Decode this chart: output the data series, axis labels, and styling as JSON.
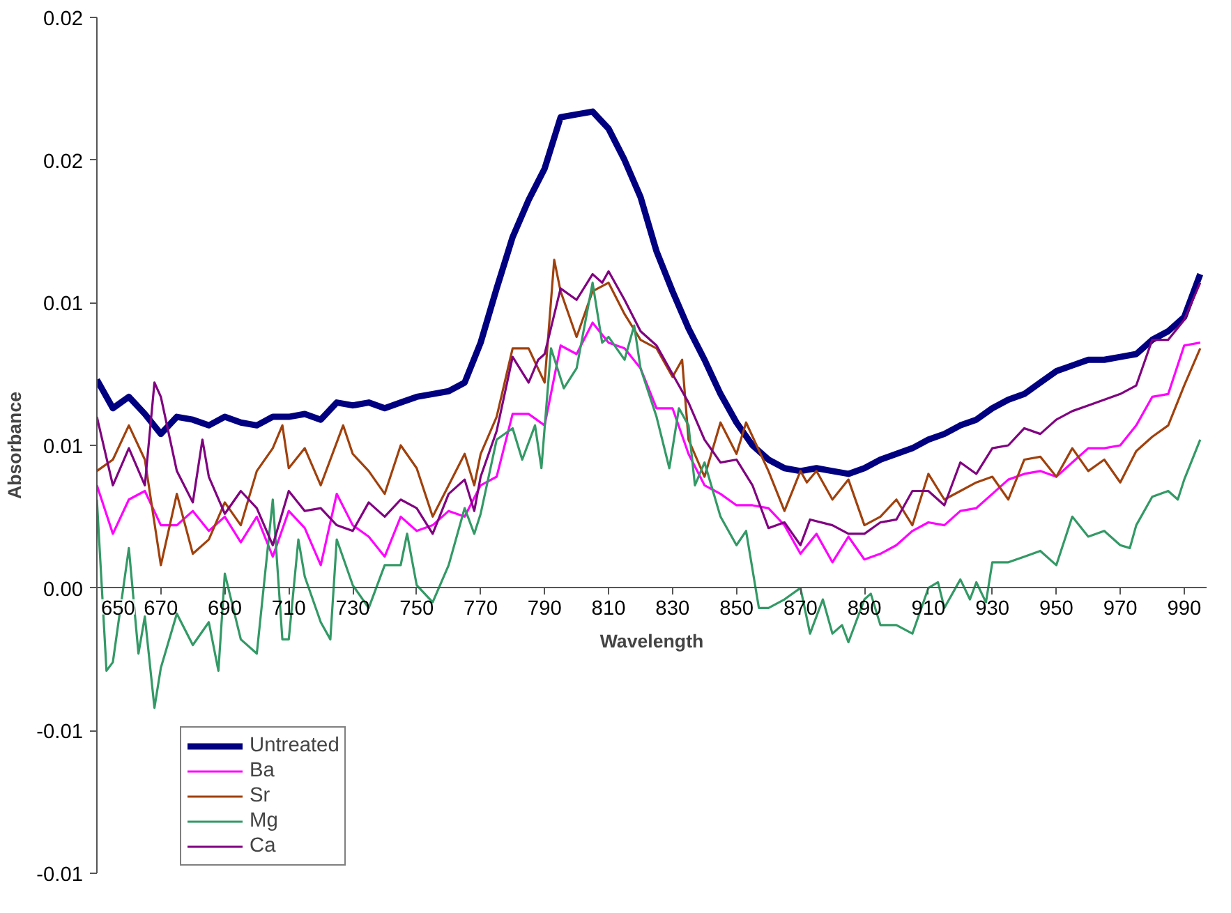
{
  "chart_data": {
    "type": "line",
    "xlabel": "Wavelength",
    "ylabel": "Absorbance",
    "xlim": [
      650,
      997
    ],
    "ylim": [
      -0.01,
      0.02
    ],
    "xticks": [
      650,
      670,
      690,
      710,
      730,
      750,
      770,
      790,
      810,
      830,
      850,
      870,
      890,
      910,
      930,
      950,
      970,
      990
    ],
    "yticks": [
      {
        "value": -0.01,
        "label": "-0.01"
      },
      {
        "value": -0.005,
        "label": "-0.01"
      },
      {
        "value": 0,
        "label": "0.00"
      },
      {
        "value": 0.005,
        "label": "0.01"
      },
      {
        "value": 0.01,
        "label": "0.01"
      },
      {
        "value": 0.015,
        "label": "0.02"
      },
      {
        "value": 0.02,
        "label": "0.02"
      }
    ],
    "grid": false,
    "legend": "bottom left",
    "marker": "none",
    "line_style": "solid",
    "series": [
      {
        "name": "Untreated",
        "color": "#000080",
        "x": [
          650,
          655,
          660,
          665,
          670,
          675,
          680,
          685,
          690,
          695,
          700,
          705,
          710,
          715,
          720,
          725,
          730,
          735,
          740,
          745,
          750,
          755,
          760,
          765,
          770,
          775,
          780,
          785,
          790,
          795,
          800,
          805,
          810,
          815,
          820,
          825,
          830,
          835,
          840,
          845,
          850,
          855,
          860,
          865,
          870,
          875,
          880,
          885,
          890,
          895,
          900,
          905,
          910,
          915,
          920,
          925,
          930,
          935,
          940,
          945,
          950,
          955,
          960,
          965,
          970,
          975,
          980,
          985,
          990,
          995
        ],
        "values": [
          0.0073,
          0.0063,
          0.0067,
          0.0061,
          0.0054,
          0.006,
          0.0059,
          0.0057,
          0.006,
          0.0058,
          0.0057,
          0.006,
          0.006,
          0.0061,
          0.0059,
          0.0065,
          0.0064,
          0.0065,
          0.0063,
          0.0065,
          0.0067,
          0.0068,
          0.0069,
          0.0072,
          0.0086,
          0.0105,
          0.0123,
          0.0136,
          0.0147,
          0.0165,
          0.0166,
          0.0167,
          0.0161,
          0.015,
          0.0137,
          0.0118,
          0.0104,
          0.0091,
          0.008,
          0.0068,
          0.0058,
          0.005,
          0.0045,
          0.0042,
          0.0041,
          0.0042,
          0.0041,
          0.004,
          0.0042,
          0.0045,
          0.0047,
          0.0049,
          0.0052,
          0.0054,
          0.0057,
          0.0059,
          0.0063,
          0.0066,
          0.0068,
          0.0072,
          0.0076,
          0.0078,
          0.008,
          0.008,
          0.0081,
          0.0082,
          0.0087,
          0.009,
          0.0095,
          0.011
        ]
      },
      {
        "name": "Ba",
        "color": "#ff00ff",
        "x": [
          650,
          655,
          660,
          665,
          670,
          675,
          680,
          685,
          690,
          695,
          700,
          705,
          710,
          715,
          720,
          725,
          730,
          735,
          740,
          745,
          750,
          755,
          760,
          765,
          770,
          775,
          780,
          785,
          790,
          795,
          800,
          805,
          810,
          815,
          820,
          825,
          830,
          835,
          840,
          845,
          850,
          855,
          860,
          865,
          870,
          875,
          880,
          885,
          890,
          895,
          900,
          905,
          910,
          915,
          920,
          925,
          930,
          935,
          940,
          945,
          950,
          955,
          960,
          965,
          970,
          975,
          980,
          985,
          990,
          995
        ],
        "values": [
          0.0036,
          0.0019,
          0.0031,
          0.0034,
          0.0022,
          0.0022,
          0.0027,
          0.002,
          0.0025,
          0.0016,
          0.0025,
          0.0011,
          0.0027,
          0.0021,
          0.0008,
          0.0033,
          0.0022,
          0.0018,
          0.0011,
          0.0025,
          0.002,
          0.0022,
          0.0027,
          0.0025,
          0.0036,
          0.0039,
          0.0061,
          0.0061,
          0.0057,
          0.0085,
          0.0082,
          0.0093,
          0.0086,
          0.0084,
          0.0077,
          0.0063,
          0.0063,
          0.0047,
          0.0036,
          0.0033,
          0.0029,
          0.0029,
          0.0028,
          0.0022,
          0.0012,
          0.0019,
          0.0009,
          0.0018,
          0.001,
          0.0012,
          0.0015,
          0.002,
          0.0023,
          0.0022,
          0.0027,
          0.0028,
          0.0033,
          0.0038,
          0.004,
          0.0041,
          0.0039,
          0.0044,
          0.0049,
          0.0049,
          0.005,
          0.0057,
          0.0067,
          0.0068,
          0.0085,
          0.0086
        ]
      },
      {
        "name": "Sr",
        "color": "#a0410d",
        "x": [
          650,
          655,
          660,
          665,
          670,
          675,
          680,
          685,
          690,
          695,
          700,
          705,
          708,
          710,
          715,
          720,
          727,
          730,
          735,
          740,
          745,
          750,
          755,
          760,
          765,
          768,
          770,
          775,
          780,
          785,
          790,
          793,
          795,
          800,
          805,
          810,
          815,
          820,
          825,
          830,
          833,
          835,
          840,
          845,
          850,
          853,
          860,
          865,
          870,
          872,
          875,
          880,
          885,
          890,
          895,
          900,
          905,
          910,
          915,
          920,
          925,
          930,
          935,
          940,
          945,
          950,
          955,
          960,
          965,
          970,
          975,
          980,
          985,
          990,
          995
        ],
        "values": [
          0.0041,
          0.0045,
          0.0057,
          0.0045,
          0.0008,
          0.0033,
          0.0012,
          0.0017,
          0.003,
          0.0022,
          0.0041,
          0.0049,
          0.0057,
          0.0042,
          0.0049,
          0.0036,
          0.0057,
          0.0047,
          0.0041,
          0.0033,
          0.005,
          0.0042,
          0.0025,
          0.0036,
          0.0047,
          0.0036,
          0.0047,
          0.006,
          0.0084,
          0.0084,
          0.0072,
          0.0115,
          0.0104,
          0.0088,
          0.0104,
          0.0107,
          0.0096,
          0.0087,
          0.0084,
          0.0074,
          0.008,
          0.0052,
          0.0039,
          0.0058,
          0.0047,
          0.0058,
          0.0041,
          0.0027,
          0.0041,
          0.0037,
          0.0041,
          0.0031,
          0.0038,
          0.0022,
          0.0025,
          0.0031,
          0.0022,
          0.004,
          0.0031,
          0.0034,
          0.0037,
          0.0039,
          0.0031,
          0.0045,
          0.0046,
          0.0039,
          0.0049,
          0.0041,
          0.0045,
          0.0037,
          0.0048,
          0.0053,
          0.0057,
          0.0071,
          0.0084
        ]
      },
      {
        "name": "Mg",
        "color": "#339966",
        "x": [
          650,
          653,
          655,
          660,
          663,
          665,
          668,
          670,
          675,
          680,
          685,
          688,
          690,
          695,
          700,
          705,
          708,
          710,
          713,
          715,
          720,
          723,
          725,
          730,
          735,
          740,
          745,
          747,
          750,
          755,
          760,
          765,
          768,
          770,
          775,
          780,
          783,
          787,
          789,
          792,
          796,
          800,
          805,
          808,
          810,
          815,
          818,
          820,
          825,
          829,
          832,
          835,
          837,
          840,
          845,
          850,
          853,
          857,
          860,
          865,
          870,
          873,
          877,
          880,
          883,
          885,
          890,
          892,
          895,
          900,
          905,
          910,
          913,
          915,
          920,
          923,
          925,
          928,
          930,
          935,
          940,
          945,
          950,
          955,
          960,
          965,
          970,
          973,
          975,
          980,
          985,
          988,
          990,
          995
        ],
        "values": [
          0.0031,
          -0.0029,
          -0.0026,
          0.0014,
          -0.0023,
          -0.001,
          -0.0042,
          -0.0028,
          -0.0009,
          -0.002,
          -0.0012,
          -0.0029,
          0.0005,
          -0.0018,
          -0.0023,
          0.0031,
          -0.0018,
          -0.0018,
          0.0017,
          0.0004,
          -0.0012,
          -0.0018,
          0.0017,
          0.0001,
          -0.0007,
          0.0008,
          0.0008,
          0.0019,
          0.0001,
          -0.0005,
          0.0008,
          0.0028,
          0.0019,
          0.0026,
          0.0052,
          0.0056,
          0.0045,
          0.0057,
          0.0042,
          0.0084,
          0.007,
          0.0077,
          0.0107,
          0.0086,
          0.0088,
          0.008,
          0.0092,
          0.0077,
          0.006,
          0.0042,
          0.0063,
          0.0057,
          0.0036,
          0.0044,
          0.0025,
          0.0015,
          0.002,
          -0.0007,
          -0.0007,
          -0.0004,
          0.0,
          -0.0016,
          -0.0004,
          -0.0016,
          -0.0013,
          -0.0019,
          -0.0004,
          -0.0002,
          -0.0013,
          -0.0013,
          -0.0016,
          0.0,
          0.0002,
          -0.0007,
          0.0003,
          -0.0004,
          0.0002,
          -0.0005,
          0.0009,
          0.0009,
          0.0011,
          0.0013,
          0.0008,
          0.0025,
          0.0018,
          0.002,
          0.0015,
          0.0014,
          0.0022,
          0.0032,
          0.0034,
          0.0031,
          0.0038,
          0.0052
        ]
      },
      {
        "name": "Ca",
        "color": "#800080",
        "x": [
          650,
          655,
          660,
          665,
          668,
          670,
          675,
          680,
          683,
          685,
          690,
          695,
          700,
          705,
          710,
          715,
          720,
          725,
          730,
          735,
          740,
          745,
          750,
          755,
          760,
          765,
          768,
          770,
          775,
          780,
          785,
          788,
          790,
          795,
          800,
          805,
          808,
          810,
          815,
          820,
          825,
          830,
          835,
          840,
          845,
          850,
          855,
          860,
          865,
          870,
          873,
          880,
          885,
          890,
          895,
          900,
          905,
          910,
          915,
          920,
          925,
          930,
          935,
          940,
          945,
          950,
          955,
          960,
          965,
          970,
          975,
          980,
          985,
          990,
          995
        ],
        "values": [
          0.006,
          0.0036,
          0.0049,
          0.0036,
          0.0072,
          0.0067,
          0.0041,
          0.003,
          0.0052,
          0.0039,
          0.0026,
          0.0034,
          0.0028,
          0.0015,
          0.0034,
          0.0027,
          0.0028,
          0.0022,
          0.002,
          0.003,
          0.0025,
          0.0031,
          0.0028,
          0.0019,
          0.0033,
          0.0038,
          0.0027,
          0.0039,
          0.0055,
          0.0081,
          0.0072,
          0.008,
          0.0082,
          0.0105,
          0.0101,
          0.011,
          0.0107,
          0.0111,
          0.0101,
          0.009,
          0.0085,
          0.0075,
          0.0065,
          0.0052,
          0.0044,
          0.0045,
          0.0036,
          0.0021,
          0.0023,
          0.0015,
          0.0024,
          0.0022,
          0.0019,
          0.0019,
          0.0023,
          0.0024,
          0.0034,
          0.0034,
          0.0029,
          0.0044,
          0.004,
          0.0049,
          0.005,
          0.0056,
          0.0054,
          0.0059,
          0.0062,
          0.0064,
          0.0066,
          0.0068,
          0.0071,
          0.0087,
          0.0087,
          0.0094,
          0.0107
        ]
      }
    ]
  }
}
